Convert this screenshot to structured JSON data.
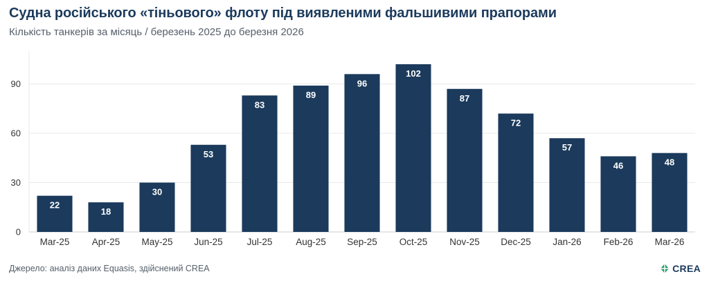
{
  "title": "Судна російського «тіньового» флоту під виявленими фальшивими прапорами",
  "subtitle": "Кількість танкерів за місяць / березень 2025 до березня 2026",
  "source": "Джерело: аналіз даних Equasis, здійснений CREA",
  "logo_text": "CREA",
  "colors": {
    "bar": "#1b3a5c",
    "grid": "#e9e9e9",
    "logo_mark": "#2e9c6e"
  },
  "chart_data": {
    "type": "bar",
    "title": "Судна російського «тіньового» флоту під виявленими фальшивими прапорами",
    "subtitle": "Кількість танкерів за місяць / березень 2025 до березня 2026",
    "categories": [
      "Mar-25",
      "Apr-25",
      "May-25",
      "Jun-25",
      "Jul-25",
      "Aug-25",
      "Sep-25",
      "Oct-25",
      "Nov-25",
      "Dec-25",
      "Jan-26",
      "Feb-26",
      "Mar-26"
    ],
    "values": [
      22,
      18,
      30,
      53,
      83,
      89,
      96,
      102,
      87,
      72,
      57,
      46,
      48
    ],
    "ylim": [
      0,
      110
    ],
    "yticks": [
      0,
      30,
      60,
      90
    ],
    "grid": true,
    "data_labels": true
  }
}
